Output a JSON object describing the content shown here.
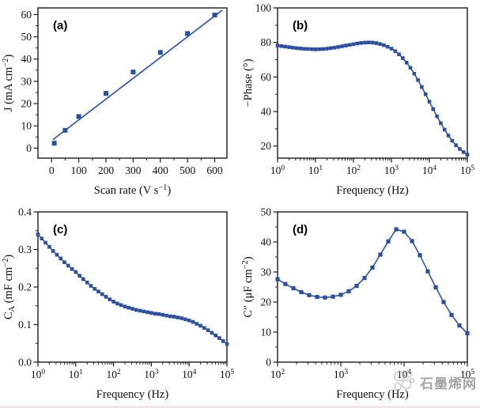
{
  "figure": {
    "background": "#ffffff",
    "accent_blue": "#2b4fa2",
    "line_blue": "#2e55a9",
    "axis_color": "#1c1c1c",
    "text_color": "#111111",
    "watermark": {
      "text": "石墨烯网",
      "color": "#8f8f8f",
      "logo": "molecule-cluster-icon"
    }
  },
  "chart_data": [
    {
      "id": "a",
      "panel_label": "(a)",
      "type": "scatter",
      "x_scale": "linear",
      "xlabel_segments": [
        {
          "text": "Scan rate (V s"
        },
        {
          "text": "−1",
          "style": "sup"
        },
        {
          "text": ")"
        }
      ],
      "ylabel_segments": [
        {
          "text": "J (mA cm"
        },
        {
          "text": "−2",
          "style": "sup"
        },
        {
          "text": ")"
        }
      ],
      "xlim": [
        -50,
        645
      ],
      "ylim": [
        -4.5,
        63
      ],
      "xticks": [
        0,
        100,
        200,
        300,
        400,
        500,
        600
      ],
      "xtick_labels": [
        "0",
        "100",
        "200",
        "300",
        "400",
        "500",
        "600"
      ],
      "x_minor_step": 50,
      "yticks": [
        0,
        10,
        20,
        30,
        40,
        50,
        60
      ],
      "ytick_labels": [
        "0",
        "10",
        "20",
        "30",
        "40",
        "50",
        "60"
      ],
      "y_minor_step": 5,
      "x": [
        10,
        50,
        100,
        200,
        300,
        400,
        500,
        600
      ],
      "y": [
        2.2,
        8.0,
        14.2,
        24.6,
        34.2,
        43.0,
        51.5,
        59.8
      ],
      "fit_line": {
        "x": [
          5,
          628
        ],
        "y": [
          3.8,
          62.0
        ]
      },
      "connect": false,
      "marker_size": 6
    },
    {
      "id": "b",
      "panel_label": "(b)",
      "type": "line",
      "x_scale": "log",
      "xlabel_segments": [
        {
          "text": "Frequency (Hz)"
        }
      ],
      "ylabel_segments": [
        {
          "text": "−Phase (°)"
        }
      ],
      "xlim": [
        1,
        100000
      ],
      "ylim": [
        13,
        100
      ],
      "xtick_exponents": [
        0,
        1,
        2,
        3,
        4,
        5
      ],
      "yticks": [
        20,
        40,
        60,
        80,
        100
      ],
      "ytick_labels": [
        "20",
        "40",
        "60",
        "80",
        "100"
      ],
      "y_minor_step": 10,
      "x": [
        1.0,
        1.26,
        1.58,
        2.0,
        2.51,
        3.16,
        3.98,
        5.01,
        6.31,
        7.94,
        10,
        12.6,
        15.8,
        20,
        25.1,
        31.6,
        39.8,
        50.1,
        63.1,
        79.4,
        100,
        126,
        158,
        200,
        251,
        316,
        398,
        501,
        631,
        794,
        1000,
        1259,
        1585,
        1995,
        2512,
        3162,
        3981,
        5012,
        6310,
        7943,
        10000,
        12589,
        15849,
        19953,
        25119,
        31623,
        39811,
        50119,
        63096,
        79433,
        100000
      ],
      "y": [
        78.2,
        77.9,
        77.6,
        77.3,
        77.0,
        76.7,
        76.5,
        76.3,
        76.2,
        76.1,
        76.0,
        76.1,
        76.2,
        76.4,
        76.7,
        77.0,
        77.4,
        77.8,
        78.2,
        78.6,
        79.0,
        79.4,
        79.7,
        79.9,
        80.0,
        79.9,
        79.6,
        79.1,
        78.4,
        77.5,
        76.4,
        74.9,
        73.1,
        70.9,
        68.3,
        65.3,
        61.9,
        58.2,
        54.2,
        50.0,
        45.7,
        41.4,
        37.2,
        33.2,
        29.5,
        26.1,
        23.1,
        20.5,
        18.3,
        16.5,
        15.0
      ],
      "connect": true,
      "marker_size": 4.6
    },
    {
      "id": "c",
      "panel_label": "(c)",
      "type": "line",
      "x_scale": "log",
      "xlabel_segments": [
        {
          "text": "Frequency (Hz)"
        }
      ],
      "ylabel_segments": [
        {
          "text": "C"
        },
        {
          "text": "A",
          "style": "sub"
        },
        {
          "text": " (mF cm"
        },
        {
          "text": "−2",
          "style": "sup"
        },
        {
          "text": ")"
        }
      ],
      "xlim": [
        1,
        100000
      ],
      "ylim": [
        0,
        0.4
      ],
      "xtick_exponents": [
        0,
        1,
        2,
        3,
        4,
        5
      ],
      "yticks": [
        0,
        0.1,
        0.2,
        0.3,
        0.4
      ],
      "ytick_labels": [
        "0.0",
        "0.1",
        "0.2",
        "0.3",
        "0.4"
      ],
      "y_minor_step": 0.05,
      "x": [
        1.0,
        1.26,
        1.58,
        2.0,
        2.51,
        3.16,
        3.98,
        5.01,
        6.31,
        7.94,
        10,
        12.6,
        15.8,
        20,
        25.1,
        31.6,
        39.8,
        50.1,
        63.1,
        79.4,
        100,
        126,
        158,
        200,
        251,
        316,
        398,
        501,
        631,
        794,
        1000,
        1259,
        1585,
        1995,
        2512,
        3162,
        3981,
        5012,
        6310,
        7943,
        10000,
        12589,
        15849,
        19953,
        25119,
        31623,
        39811,
        50119,
        63096,
        79433,
        100000
      ],
      "y": [
        0.34,
        0.329,
        0.318,
        0.307,
        0.296,
        0.286,
        0.276,
        0.266,
        0.257,
        0.248,
        0.24,
        0.23,
        0.221,
        0.212,
        0.203,
        0.195,
        0.188,
        0.181,
        0.174,
        0.167,
        0.161,
        0.156,
        0.152,
        0.148,
        0.145,
        0.142,
        0.139,
        0.137,
        0.135,
        0.133,
        0.131,
        0.129,
        0.128,
        0.126,
        0.124,
        0.122,
        0.121,
        0.119,
        0.117,
        0.114,
        0.111,
        0.107,
        0.102,
        0.097,
        0.091,
        0.085,
        0.078,
        0.071,
        0.064,
        0.056,
        0.048
      ],
      "connect": true,
      "marker_size": 4.6
    },
    {
      "id": "d",
      "panel_label": "(d)",
      "type": "line",
      "x_scale": "log",
      "xlabel_segments": [
        {
          "text": "Frequency (Hz)"
        }
      ],
      "ylabel_segments": [
        {
          "text": "C″ (μF cm"
        },
        {
          "text": "−2",
          "style": "sup"
        },
        {
          "text": ")"
        }
      ],
      "xlim": [
        100,
        100000
      ],
      "ylim": [
        0,
        50
      ],
      "xtick_exponents": [
        2,
        3,
        4,
        5
      ],
      "yticks": [
        0,
        10,
        20,
        30,
        40,
        50
      ],
      "ytick_labels": [
        "0",
        "10",
        "20",
        "30",
        "40",
        "50"
      ],
      "y_minor_step": 5,
      "x": [
        100,
        133,
        178,
        237,
        316,
        422,
        562,
        750,
        1000,
        1334,
        1778,
        2371,
        3162,
        4217,
        5623,
        7499,
        10000,
        13335,
        17783,
        23714,
        31623,
        42170,
        56234,
        74989,
        100000
      ],
      "y": [
        27.6,
        26.0,
        24.6,
        23.3,
        22.3,
        21.7,
        21.5,
        21.8,
        22.4,
        23.6,
        25.4,
        28.0,
        31.5,
        35.8,
        40.2,
        44.2,
        43.4,
        40.3,
        35.6,
        30.2,
        24.9,
        20.0,
        15.7,
        12.2,
        9.6
      ],
      "connect": true,
      "marker_size": 5.2
    }
  ]
}
